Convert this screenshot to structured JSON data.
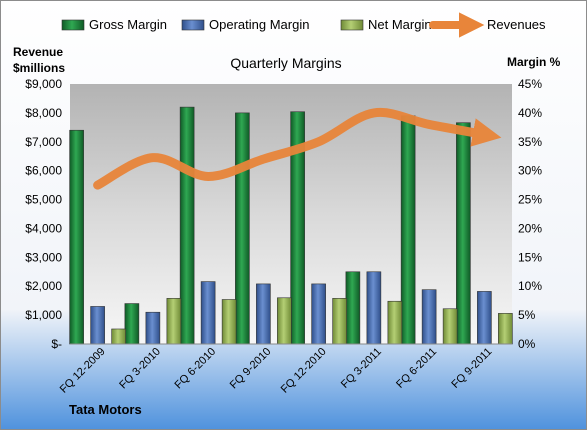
{
  "chart_data": {
    "type": "bar",
    "title": "Quarterly Margins",
    "company": "Tata Motors",
    "left_axis_title": [
      "Revenue",
      "$millions"
    ],
    "right_axis_title": "Margin %",
    "categories": [
      "FQ 12-2009",
      "FQ 3-2010",
      "FQ 6-2010",
      "FQ 9-2010",
      "FQ 12-2010",
      "FQ 3-2011",
      "FQ 6-2011",
      "FQ 9-2011"
    ],
    "left_ylim": [
      0,
      9000
    ],
    "right_ylim": [
      0,
      45
    ],
    "left_ticks": [
      "$-",
      "$1,000",
      "$2,000",
      "$3,000",
      "$4,000",
      "$5,000",
      "$6,000",
      "$7,000",
      "$8,000",
      "$9,000"
    ],
    "right_ticks": [
      "0%",
      "5%",
      "10%",
      "15%",
      "20%",
      "25%",
      "30%",
      "35%",
      "40%",
      "45%"
    ],
    "bar_series": [
      {
        "name": "Gross Margin",
        "color": "#1e8a3e",
        "values": [
          37,
          7,
          41,
          40,
          40.2,
          12.5,
          39.5,
          38.3
        ]
      },
      {
        "name": "Operating Margin",
        "color": "#4a72b8",
        "values": [
          6.5,
          5.5,
          10.8,
          10.4,
          10.4,
          12.5,
          9.4,
          9.1
        ]
      },
      {
        "name": "Net Margin",
        "color": "#9bbb59",
        "values": [
          2.6,
          7.9,
          7.7,
          8,
          7.9,
          7.4,
          6.1,
          5.3
        ]
      }
    ],
    "line_series": {
      "name": "Revenues",
      "color": "#e8853a",
      "axis": "left",
      "values": [
        5500,
        6450,
        5800,
        6400,
        7000,
        8000,
        7600,
        7250
      ]
    },
    "grid": false,
    "legend_position": "top"
  }
}
